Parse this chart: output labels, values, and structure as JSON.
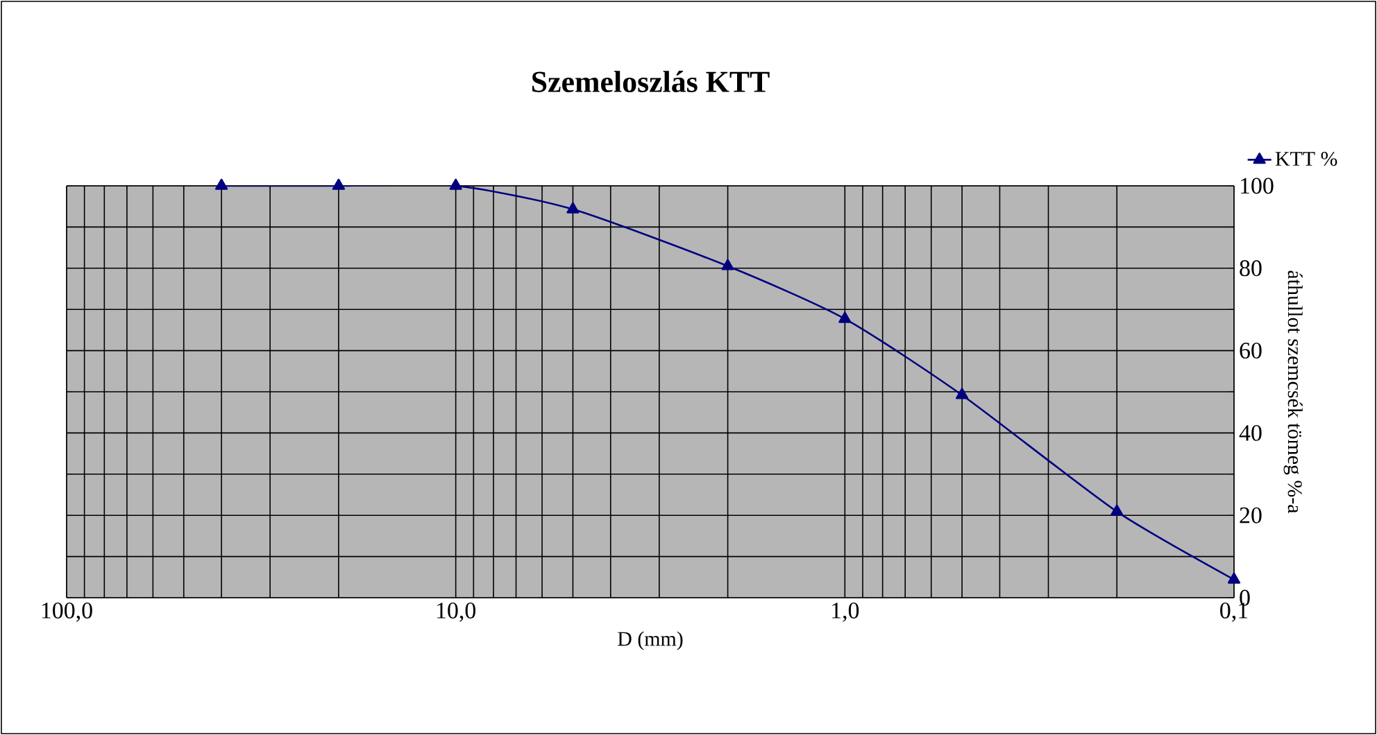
{
  "chart_data": {
    "type": "line",
    "title": "Szemeloszlás KTT",
    "xlabel": "D (mm)",
    "ylabel": "áthullot szemcsék tömeg %-a",
    "x": [
      40,
      20,
      10,
      5,
      2,
      1,
      0.5,
      0.2,
      0.1
    ],
    "series": [
      {
        "name": "KTT %",
        "color": "#000080",
        "values": [
          100,
          100,
          100,
          94.3,
          80.5,
          67.7,
          49.2,
          20.9,
          4.4
        ]
      }
    ],
    "log": "x",
    "xlim": [
      100,
      0.1
    ],
    "xticks": [
      {
        "value": 100,
        "label": "100,0"
      },
      {
        "value": 10,
        "label": "10,0"
      },
      {
        "value": 1,
        "label": "1,0"
      },
      {
        "value": 0.1,
        "label": "0,1"
      }
    ],
    "ylim": [
      0,
      100
    ],
    "yticks": [
      0,
      {
        "value": 10,
        "label": null
      },
      20,
      {
        "value": 30,
        "label": null
      },
      40,
      {
        "value": 50,
        "label": null
      },
      60,
      {
        "value": 70,
        "label": null
      },
      80,
      {
        "value": 90,
        "label": null
      },
      100
    ],
    "grid": true,
    "legend": "top right",
    "marker": "triangle",
    "line_style": "solid"
  }
}
